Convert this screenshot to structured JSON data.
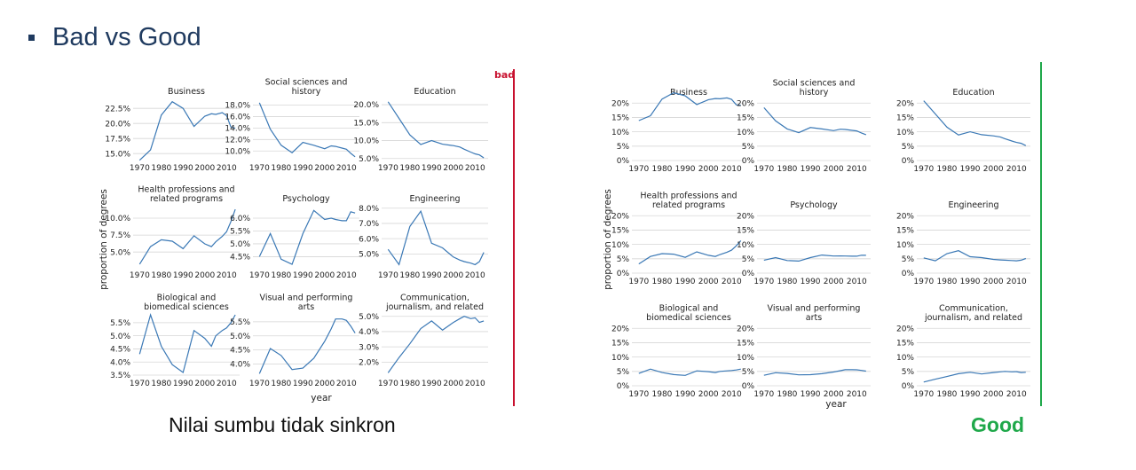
{
  "heading": "Bad vs Good",
  "caption_left": "Nilai sumbu tidak sinkron",
  "caption_right": "Good",
  "bad_flag": "bad",
  "colors": {
    "bad": "#c8102e",
    "good": "#1fa84a",
    "line": "#3a78b5",
    "heading": "#1f3a5f"
  },
  "chart_data": [
    {
      "type": "line",
      "layout": "3x3 small multiples, independent y axes",
      "ylabel": "proportion of degrees",
      "xlabel": "year",
      "xticks": [
        1970,
        1980,
        1990,
        2000,
        2010
      ],
      "x": [
        1970,
        1975,
        1980,
        1985,
        1990,
        1995,
        2000,
        2003,
        2005,
        2008,
        2010,
        2012,
        2014
      ],
      "series": [
        {
          "name": "Business",
          "title_lines": [
            "Business"
          ],
          "ylim": [
            14,
            24
          ],
          "yticks": [
            15,
            17.5,
            20,
            22.5
          ],
          "tick_labels": [
            "15.0%",
            "17.5%",
            "20.0%",
            "22.5%"
          ],
          "values": [
            13.9,
            15.6,
            21.4,
            23.6,
            22.5,
            19.5,
            21.2,
            21.6,
            21.5,
            21.8,
            21.3,
            19.4,
            19.2
          ]
        },
        {
          "name": "Social sciences and history",
          "title_lines": [
            "Social sciences and",
            "history"
          ],
          "ylim": [
            8.5,
            19
          ],
          "yticks": [
            10,
            12,
            14,
            16,
            18
          ],
          "tick_labels": [
            "10.0%",
            "12.0%",
            "14.0%",
            "16.0%",
            "18.0%"
          ],
          "values": [
            18.4,
            13.8,
            11.0,
            9.7,
            11.5,
            11.0,
            10.4,
            10.9,
            10.8,
            10.5,
            10.3,
            9.6,
            9.0
          ]
        },
        {
          "name": "Education",
          "title_lines": [
            "Education"
          ],
          "ylim": [
            4.7,
            21.5
          ],
          "yticks": [
            5,
            10,
            15,
            20
          ],
          "tick_labels": [
            "5.0%",
            "10.0%",
            "15.0%",
            "20.0%"
          ],
          "values": [
            20.8,
            16.2,
            11.6,
            8.9,
            10.0,
            9.0,
            8.6,
            8.2,
            7.6,
            6.8,
            6.3,
            6.0,
            5.2
          ]
        },
        {
          "name": "Health professions and related programs",
          "title_lines": [
            "Health professions and",
            "related programs"
          ],
          "ylim": [
            2.8,
            11.7
          ],
          "yticks": [
            5,
            7.5,
            10
          ],
          "tick_labels": [
            "5.0%",
            "7.5%",
            "10.0%"
          ],
          "values": [
            3.2,
            5.8,
            6.8,
            6.6,
            5.5,
            7.4,
            6.2,
            5.8,
            6.5,
            7.3,
            8.0,
            9.5,
            11.3
          ]
        },
        {
          "name": "Psychology",
          "title_lines": [
            "Psychology"
          ],
          "ylim": [
            4.1,
            6.45
          ],
          "yticks": [
            4.5,
            5,
            5.5,
            6
          ],
          "tick_labels": [
            "4.5%",
            "5.0%",
            "5.5%",
            "6.0%"
          ],
          "values": [
            4.5,
            5.4,
            4.4,
            4.2,
            5.4,
            6.3,
            5.95,
            6.0,
            5.95,
            5.9,
            5.9,
            6.25,
            6.2
          ]
        },
        {
          "name": "Engineering",
          "title_lines": [
            "Engineering"
          ],
          "ylim": [
            4.15,
            8.1
          ],
          "yticks": [
            5,
            6,
            7,
            8
          ],
          "tick_labels": [
            "5.0%",
            "6.0%",
            "7.0%",
            "8.0%"
          ],
          "values": [
            5.3,
            4.3,
            6.8,
            7.8,
            5.7,
            5.4,
            4.8,
            4.6,
            4.5,
            4.4,
            4.3,
            4.5,
            5.1
          ]
        },
        {
          "name": "Biological and biomedical sciences",
          "title_lines": [
            "Biological and",
            "biomedical sciences"
          ],
          "ylim": [
            3.5,
            5.8
          ],
          "yticks": [
            3.5,
            4,
            4.5,
            5,
            5.5
          ],
          "tick_labels": [
            "3.5%",
            "4.0%",
            "4.5%",
            "5.0%",
            "5.5%"
          ],
          "values": [
            4.3,
            5.8,
            4.6,
            3.9,
            3.6,
            5.2,
            4.9,
            4.6,
            5.0,
            5.2,
            5.3,
            5.5,
            5.8
          ]
        },
        {
          "name": "Visual and performing arts",
          "title_lines": [
            "Visual and performing",
            "arts"
          ],
          "ylim": [
            3.6,
            5.75
          ],
          "yticks": [
            4,
            4.5,
            5,
            5.5
          ],
          "tick_labels": [
            "4.0%",
            "4.5%",
            "5.0%",
            "5.5%"
          ],
          "values": [
            3.65,
            4.55,
            4.3,
            3.8,
            3.85,
            4.2,
            4.8,
            5.25,
            5.6,
            5.6,
            5.55,
            5.35,
            5.1
          ]
        },
        {
          "name": "Communication, journalism, and related",
          "title_lines": [
            "Communication,",
            "journalism, and related"
          ],
          "ylim": [
            1.15,
            5.1
          ],
          "yticks": [
            2,
            3,
            4,
            5
          ],
          "tick_labels": [
            "2.0%",
            "3.0%",
            "4.0%",
            "5.0%"
          ],
          "values": [
            1.3,
            2.3,
            3.2,
            4.2,
            4.7,
            4.1,
            4.6,
            4.85,
            5.0,
            4.85,
            4.9,
            4.6,
            4.7
          ]
        }
      ]
    },
    {
      "type": "line",
      "layout": "3x3 small multiples, shared y axis",
      "ylabel": "proportion of degrees",
      "xlabel": "year",
      "xticks": [
        1970,
        1980,
        1990,
        2000,
        2010
      ],
      "ylim": [
        0,
        21
      ],
      "yticks": [
        0,
        5,
        10,
        15,
        20
      ],
      "tick_labels": [
        "0%",
        "5%",
        "10%",
        "15%",
        "20%"
      ],
      "x": [
        1970,
        1975,
        1980,
        1985,
        1990,
        1995,
        2000,
        2003,
        2005,
        2008,
        2010,
        2012,
        2014
      ],
      "series": [
        {
          "name": "Business",
          "title_lines": [
            "Business"
          ],
          "values": [
            13.9,
            15.6,
            21.4,
            23.6,
            22.5,
            19.5,
            21.2,
            21.6,
            21.5,
            21.8,
            21.3,
            19.4,
            19.2
          ]
        },
        {
          "name": "Social sciences and history",
          "title_lines": [
            "Social sciences and",
            "history"
          ],
          "values": [
            18.4,
            13.8,
            11.0,
            9.7,
            11.5,
            11.0,
            10.4,
            10.9,
            10.8,
            10.5,
            10.3,
            9.6,
            9.0
          ]
        },
        {
          "name": "Education",
          "title_lines": [
            "Education"
          ],
          "values": [
            20.8,
            16.2,
            11.6,
            8.9,
            10.0,
            9.0,
            8.6,
            8.2,
            7.6,
            6.8,
            6.3,
            6.0,
            5.2
          ]
        },
        {
          "name": "Health professions and related programs",
          "title_lines": [
            "Health professions and",
            "related programs"
          ],
          "values": [
            3.2,
            5.8,
            6.8,
            6.6,
            5.5,
            7.4,
            6.2,
            5.8,
            6.5,
            7.3,
            8.0,
            9.5,
            11.3
          ]
        },
        {
          "name": "Psychology",
          "title_lines": [
            "Psychology"
          ],
          "values": [
            4.5,
            5.4,
            4.4,
            4.2,
            5.4,
            6.3,
            5.95,
            6.0,
            5.95,
            5.9,
            5.9,
            6.25,
            6.2
          ]
        },
        {
          "name": "Engineering",
          "title_lines": [
            "Engineering"
          ],
          "values": [
            5.3,
            4.3,
            6.8,
            7.8,
            5.7,
            5.4,
            4.8,
            4.6,
            4.5,
            4.4,
            4.3,
            4.5,
            5.1
          ]
        },
        {
          "name": "Biological and biomedical sciences",
          "title_lines": [
            "Biological and",
            "biomedical sciences"
          ],
          "values": [
            4.3,
            5.8,
            4.6,
            3.9,
            3.6,
            5.2,
            4.9,
            4.6,
            5.0,
            5.2,
            5.3,
            5.5,
            5.8
          ]
        },
        {
          "name": "Visual and performing arts",
          "title_lines": [
            "Visual and performing",
            "arts"
          ],
          "values": [
            3.65,
            4.55,
            4.3,
            3.8,
            3.85,
            4.2,
            4.8,
            5.25,
            5.6,
            5.6,
            5.55,
            5.35,
            5.1
          ]
        },
        {
          "name": "Communication, journalism, and related",
          "title_lines": [
            "Communication,",
            "journalism, and related"
          ],
          "values": [
            1.3,
            2.3,
            3.2,
            4.2,
            4.7,
            4.1,
            4.6,
            4.85,
            5.0,
            4.85,
            4.9,
            4.6,
            4.7
          ]
        }
      ]
    }
  ]
}
